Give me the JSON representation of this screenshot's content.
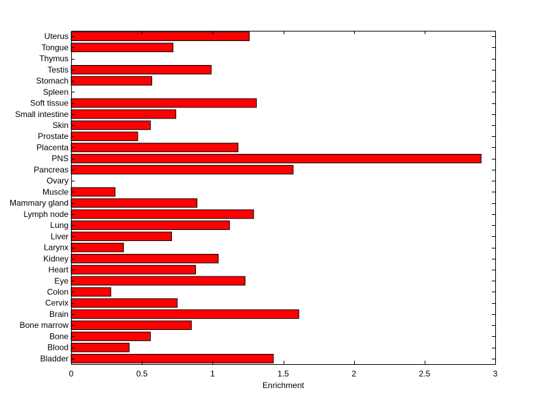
{
  "chart_data": {
    "type": "bar",
    "orientation": "horizontal",
    "title": "",
    "xlabel": "Enrichment",
    "ylabel": "",
    "xlim": [
      0,
      3
    ],
    "xticks": [
      0,
      0.5,
      1,
      1.5,
      2,
      2.5,
      3
    ],
    "xtick_labels": [
      "0",
      "0.5",
      "1",
      "1.5",
      "2",
      "2.5",
      "3"
    ],
    "grid": false,
    "legend": "none",
    "bar_color": "#ff0000",
    "bar_edge_color": "#000000",
    "categories": [
      "Bladder",
      "Blood",
      "Bone",
      "Bone marrow",
      "Brain",
      "Cervix",
      "Colon",
      "Eye",
      "Heart",
      "Kidney",
      "Larynx",
      "Liver",
      "Lung",
      "Lymph node",
      "Mammary gland",
      "Muscle",
      "Ovary",
      "Pancreas",
      "PNS",
      "Placenta",
      "Prostate",
      "Skin",
      "Small intestine",
      "Soft tissue",
      "Spleen",
      "Stomach",
      "Testis",
      "Thymus",
      "Tongue",
      "Uterus"
    ],
    "values": [
      1.43,
      0.41,
      0.56,
      0.85,
      1.61,
      0.75,
      0.28,
      1.23,
      0.88,
      1.04,
      0.37,
      0.71,
      1.12,
      1.29,
      0.89,
      0.31,
      0,
      1.57,
      2.9,
      1.18,
      0.47,
      0.56,
      0.74,
      1.31,
      0,
      0.57,
      0.99,
      0,
      0.72,
      1.26
    ]
  }
}
